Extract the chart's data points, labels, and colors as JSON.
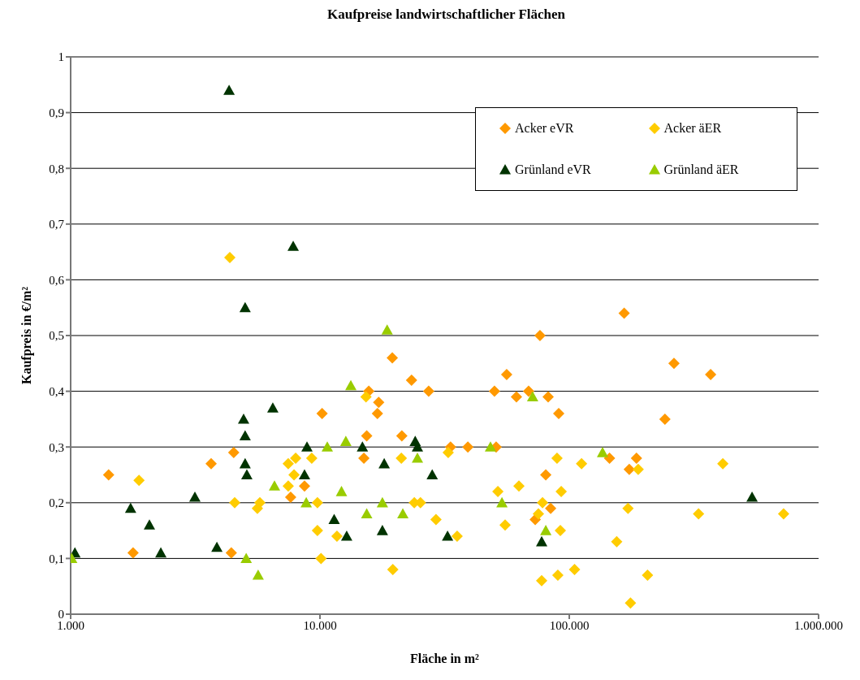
{
  "chart_data": {
    "type": "scatter",
    "title": "Kaufpreise landwirtschaftlicher Flächen",
    "xlabel": "Fläche in m²",
    "ylabel": "Kaufpreis in €/m²",
    "log": "x",
    "xlim": [
      1000,
      1000000
    ],
    "xticks": [
      {
        "value": 1000,
        "label": "1.000"
      },
      {
        "value": 10000,
        "label": "10.000"
      },
      {
        "value": 100000,
        "label": "100.000"
      },
      {
        "value": 1000000,
        "label": "1.000.000"
      }
    ],
    "ylim": [
      0,
      1
    ],
    "yticks": [
      0,
      {
        "value": 0.1,
        "label": "0,1"
      },
      {
        "value": 0.2,
        "label": "0,2"
      },
      {
        "value": 0.3,
        "label": "0,3"
      },
      {
        "value": 0.4,
        "label": "0,4"
      },
      {
        "value": 0.5,
        "label": "0,5"
      },
      {
        "value": 0.6,
        "label": "0,6"
      },
      {
        "value": 0.7,
        "label": "0,7"
      },
      {
        "value": 0.8,
        "label": "0,8"
      },
      {
        "value": 0.9,
        "label": "0,9"
      },
      1
    ],
    "grid": "y",
    "legend": "top right",
    "series": [
      {
        "name": "Acker eVR",
        "color": "#ff9900",
        "marker": "diamond",
        "x": [
          1420,
          1780,
          3660,
          4510,
          4410,
          7630,
          8670,
          10200,
          15700,
          15400,
          15000,
          17200,
          17000,
          19500,
          21300,
          23300,
          27300,
          33400,
          39200,
          50100,
          50900,
          56100,
          61400,
          68700,
          76300,
          73000,
          82300,
          80500,
          84200,
          90700,
          145000,
          166000,
          174000,
          186000,
          242000,
          263000,
          369000
        ],
        "values": [
          0.25,
          0.11,
          0.27,
          0.29,
          0.11,
          0.21,
          0.23,
          0.36,
          0.4,
          0.32,
          0.28,
          0.38,
          0.36,
          0.46,
          0.32,
          0.42,
          0.4,
          0.3,
          0.3,
          0.4,
          0.3,
          0.43,
          0.39,
          0.4,
          0.5,
          0.17,
          0.39,
          0.25,
          0.19,
          0.36,
          0.28,
          0.54,
          0.26,
          0.28,
          0.35,
          0.45,
          0.43
        ]
      },
      {
        "name": "Acker äER",
        "color": "#ffcc00",
        "marker": "diamond",
        "x": [
          1880,
          4350,
          4550,
          5610,
          5740,
          7460,
          7990,
          9270,
          7870,
          7460,
          9770,
          9770,
          10100,
          11700,
          15300,
          21200,
          32700,
          23900,
          25300,
          29200,
          35500,
          19600,
          51700,
          55300,
          62800,
          89300,
          112000,
          92800,
          78100,
          75200,
          92100,
          77500,
          90000,
          105000,
          189000,
          413000,
          172000,
          330000,
          724000,
          155000,
          206000,
          176000
        ],
        "values": [
          0.24,
          0.64,
          0.2,
          0.19,
          0.2,
          0.27,
          0.28,
          0.28,
          0.25,
          0.23,
          0.2,
          0.15,
          0.1,
          0.14,
          0.39,
          0.28,
          0.29,
          0.2,
          0.2,
          0.17,
          0.14,
          0.08,
          0.22,
          0.16,
          0.23,
          0.28,
          0.27,
          0.22,
          0.2,
          0.18,
          0.15,
          0.06,
          0.07,
          0.08,
          0.26,
          0.27,
          0.19,
          0.18,
          0.18,
          0.13,
          0.07,
          0.02
        ]
      },
      {
        "name": "Grünland eVR",
        "color": "#003300",
        "marker": "triangle",
        "x": [
          4320,
          7810,
          5010,
          1040,
          1740,
          2070,
          2300,
          3150,
          3860,
          4940,
          5010,
          5010,
          5090,
          6470,
          8870,
          8670,
          11400,
          12800,
          14800,
          18100,
          17800,
          24100,
          24600,
          28200,
          32500,
          77500,
          541000
        ],
        "values": [
          0.94,
          0.66,
          0.55,
          0.11,
          0.19,
          0.16,
          0.11,
          0.21,
          0.12,
          0.35,
          0.32,
          0.27,
          0.25,
          0.37,
          0.3,
          0.25,
          0.17,
          0.14,
          0.3,
          0.27,
          0.15,
          0.31,
          0.3,
          0.25,
          0.14,
          0.13,
          0.21
        ]
      },
      {
        "name": "Grünland äER",
        "color": "#99cc00",
        "marker": "triangle",
        "x": [
          1010,
          5060,
          5650,
          6570,
          8810,
          10700,
          18600,
          13300,
          12700,
          12200,
          15400,
          17800,
          21500,
          24600,
          48300,
          53700,
          71300,
          80500,
          136000
        ],
        "values": [
          0.1,
          0.1,
          0.07,
          0.23,
          0.2,
          0.3,
          0.51,
          0.41,
          0.31,
          0.22,
          0.18,
          0.2,
          0.18,
          0.28,
          0.3,
          0.2,
          0.39,
          0.15,
          0.29
        ]
      }
    ]
  }
}
